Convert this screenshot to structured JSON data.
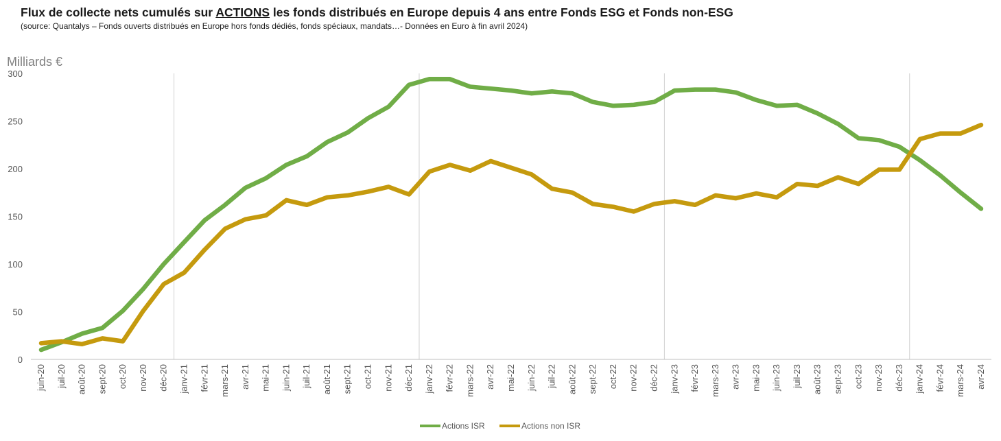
{
  "header": {
    "title_pre": "Flux de collecte nets cumulés sur ",
    "title_emph": "ACTIONS",
    "title_post": " les fonds distribués en Europe depuis 4 ans entre Fonds ESG et Fonds non-ESG",
    "subtitle": "(source: Quantalys – Fonds ouverts distribués en Europe hors fonds dédiés, fonds spéciaux, mandats…- Données en Euro à fin avril 2024)"
  },
  "chart_data": {
    "type": "line",
    "ylabel": "Milliards €",
    "ylim": [
      0,
      300
    ],
    "yticks": [
      0,
      50,
      100,
      150,
      200,
      250,
      300
    ],
    "grid": false,
    "year_separators_after": [
      "déc-20",
      "déc-21",
      "déc-22",
      "déc-23"
    ],
    "legend_position": "bottom",
    "categories": [
      "juin-20",
      "juil-20",
      "août-20",
      "sept-20",
      "oct-20",
      "nov-20",
      "déc-20",
      "janv-21",
      "févr-21",
      "mars-21",
      "avr-21",
      "mai-21",
      "juin-21",
      "juil-21",
      "août-21",
      "sept-21",
      "oct-21",
      "nov-21",
      "déc-21",
      "janv-22",
      "févr-22",
      "mars-22",
      "avr-22",
      "mai-22",
      "juin-22",
      "juil-22",
      "août-22",
      "sept-22",
      "oct-22",
      "nov-22",
      "déc-22",
      "janv-23",
      "févr-23",
      "mars-23",
      "avr-23",
      "mai-23",
      "juin-23",
      "juil-23",
      "août-23",
      "sept-23",
      "oct-23",
      "nov-23",
      "déc-23",
      "janv-24",
      "févr-24",
      "mars-24",
      "avr-24"
    ],
    "series": [
      {
        "name": "Actions ISR",
        "color": "#70AD47",
        "values": [
          10,
          18,
          27,
          33,
          51,
          74,
          100,
          123,
          146,
          162,
          180,
          190,
          204,
          213,
          228,
          238,
          253,
          265,
          288,
          294,
          294,
          286,
          284,
          282,
          279,
          281,
          279,
          270,
          266,
          267,
          270,
          282,
          283,
          283,
          280,
          272,
          266,
          267,
          258,
          247,
          232,
          230,
          223,
          209,
          193,
          175,
          158
        ]
      },
      {
        "name": "Actions non ISR",
        "color": "#C59A0E",
        "values": [
          17,
          19,
          16,
          22,
          19,
          51,
          79,
          91,
          115,
          137,
          147,
          151,
          167,
          162,
          170,
          172,
          176,
          181,
          173,
          197,
          204,
          198,
          208,
          201,
          194,
          179,
          175,
          163,
          160,
          155,
          163,
          166,
          162,
          172,
          169,
          174,
          170,
          184,
          182,
          191,
          184,
          199,
          199,
          231,
          237,
          237,
          246
        ]
      }
    ]
  }
}
